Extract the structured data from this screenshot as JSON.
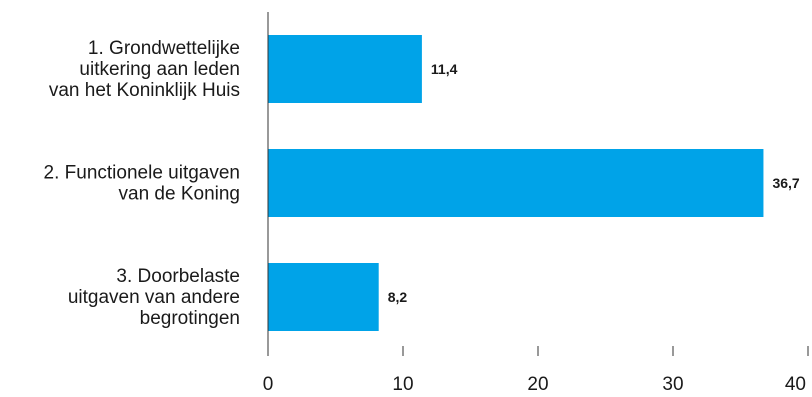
{
  "chart_data": {
    "type": "bar",
    "orientation": "horizontal",
    "categories": [
      [
        "1. Grondwettelijke",
        "uitkering aan leden",
        "van het Koninklijk Huis"
      ],
      [
        "2. Functionele uitgaven",
        "van de Koning"
      ],
      [
        "3. Doorbelaste",
        "uitgaven van andere",
        "begrotingen"
      ]
    ],
    "values": [
      11.4,
      36.7,
      8.2
    ],
    "value_labels": [
      "11,4",
      "36,7",
      "8,2"
    ],
    "xlim": [
      0,
      40
    ],
    "xticks": [
      0,
      10,
      20,
      30,
      40
    ],
    "xtick_labels": [
      "0",
      "10",
      "20",
      "30",
      "40"
    ],
    "grid": false,
    "bar_color": "#00A3E8",
    "axis_color": "#333333"
  }
}
